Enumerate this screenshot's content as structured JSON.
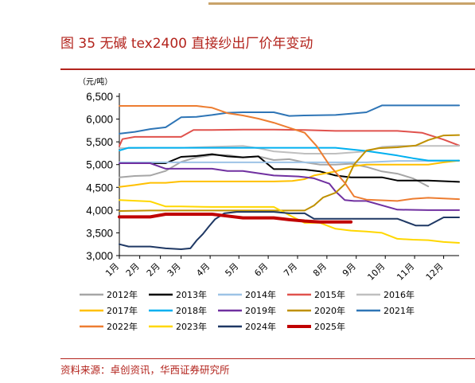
{
  "figure": {
    "title": "图 35 无碱 tex2400 直接纱出厂价年变动",
    "source": "资料来源：卓创资讯，华西证券研究所"
  },
  "chart_data": {
    "type": "line",
    "title": "图 35 无碱 tex2400 直接纱出厂价年变动",
    "unit_label": "（元/吨）",
    "ylim": [
      3000,
      6500
    ],
    "yticks": [
      "3,000",
      "3,500",
      "4,000",
      "4,500",
      "5,000",
      "5,500",
      "6,000",
      "6,500"
    ],
    "ytick_values": [
      3000,
      3500,
      4000,
      4500,
      5000,
      5500,
      6000,
      6500
    ],
    "xlim": [
      1,
      12
    ],
    "xticks": [
      "1月",
      "2月",
      "2月",
      "3月",
      "4月",
      "5月",
      "6月",
      "7月",
      "8月",
      "9月",
      "10月",
      "11月",
      "12月"
    ],
    "xtick_values": [
      1,
      1.66,
      2.33,
      3,
      3.94,
      4.87,
      5.82,
      6.77,
      7.72,
      8.67,
      9.61,
      10.56,
      11.5
    ],
    "grid": false,
    "legend_position": "bottom",
    "series": [
      {
        "name": "2012年",
        "color": "#a6a6a6",
        "width": 2,
        "points": [
          [
            1,
            4720
          ],
          [
            1.5,
            4750
          ],
          [
            2,
            4760
          ],
          [
            2.5,
            4860
          ],
          [
            3,
            5060
          ],
          [
            3.5,
            5160
          ],
          [
            4,
            5210
          ],
          [
            4.5,
            5210
          ],
          [
            5,
            5160
          ],
          [
            5.5,
            5180
          ],
          [
            6,
            5100
          ],
          [
            6.5,
            5120
          ],
          [
            7,
            5050
          ],
          [
            7.5,
            5000
          ],
          [
            8,
            5000
          ],
          [
            8.5,
            5020
          ],
          [
            9,
            4950
          ],
          [
            9.5,
            4850
          ],
          [
            10,
            4800
          ],
          [
            10.5,
            4700
          ],
          [
            11,
            4520
          ]
        ]
      },
      {
        "name": "2013年",
        "color": "#000000",
        "width": 2,
        "points": [
          [
            1,
            5030
          ],
          [
            1.5,
            5030
          ],
          [
            2,
            5030
          ],
          [
            2.5,
            5030
          ],
          [
            3,
            5170
          ],
          [
            3.5,
            5190
          ],
          [
            4,
            5230
          ],
          [
            4.5,
            5180
          ],
          [
            5,
            5160
          ],
          [
            5.5,
            5180
          ],
          [
            6,
            4900
          ],
          [
            6.5,
            4900
          ],
          [
            7,
            4890
          ],
          [
            7.5,
            4850
          ],
          [
            8,
            4760
          ],
          [
            8.5,
            4720
          ],
          [
            9,
            4720
          ],
          [
            9.5,
            4720
          ],
          [
            10,
            4650
          ],
          [
            11,
            4650
          ],
          [
            12,
            4620
          ]
        ]
      },
      {
        "name": "2014年",
        "color": "#9dc3e6",
        "width": 2,
        "points": [
          [
            1,
            5050
          ],
          [
            2,
            5050
          ],
          [
            3,
            5050
          ],
          [
            4,
            5050
          ],
          [
            5,
            5050
          ],
          [
            6,
            5050
          ],
          [
            7,
            5050
          ],
          [
            8,
            5050
          ],
          [
            9,
            5050
          ],
          [
            10,
            5080
          ],
          [
            11,
            5080
          ],
          [
            12,
            5080
          ]
        ]
      },
      {
        "name": "2015年",
        "color": "#e0524d",
        "width": 2,
        "points": [
          [
            1,
            5410
          ],
          [
            1.1,
            5560
          ],
          [
            1.5,
            5610
          ],
          [
            2,
            5610
          ],
          [
            3,
            5610
          ],
          [
            3.4,
            5760
          ],
          [
            4,
            5760
          ],
          [
            5,
            5770
          ],
          [
            6,
            5770
          ],
          [
            7,
            5760
          ],
          [
            8,
            5740
          ],
          [
            9,
            5740
          ],
          [
            10,
            5740
          ],
          [
            10.8,
            5700
          ],
          [
            11.5,
            5550
          ],
          [
            12,
            5420
          ]
        ]
      },
      {
        "name": "2016年",
        "color": "#bfbfbf",
        "width": 2,
        "points": [
          [
            1,
            5360
          ],
          [
            2,
            5370
          ],
          [
            3,
            5370
          ],
          [
            4,
            5390
          ],
          [
            5,
            5410
          ],
          [
            5.5,
            5360
          ],
          [
            6,
            5290
          ],
          [
            7,
            5240
          ],
          [
            8,
            5240
          ],
          [
            9,
            5290
          ],
          [
            9.5,
            5390
          ],
          [
            10,
            5410
          ],
          [
            11,
            5410
          ],
          [
            12,
            5410
          ]
        ]
      },
      {
        "name": "2017年",
        "color": "#ffc000",
        "width": 2,
        "points": [
          [
            1,
            4510
          ],
          [
            1.5,
            4550
          ],
          [
            2,
            4600
          ],
          [
            2.5,
            4600
          ],
          [
            3,
            4630
          ],
          [
            4,
            4630
          ],
          [
            5,
            4630
          ],
          [
            6,
            4630
          ],
          [
            6.6,
            4640
          ],
          [
            7,
            4680
          ],
          [
            7.3,
            4760
          ],
          [
            8,
            4850
          ],
          [
            8.5,
            4960
          ],
          [
            9,
            5000
          ],
          [
            10,
            5000
          ],
          [
            11,
            5000
          ],
          [
            11.5,
            5050
          ],
          [
            12,
            5090
          ]
        ]
      },
      {
        "name": "2018年",
        "color": "#00b0f0",
        "width": 2,
        "points": [
          [
            1,
            5310
          ],
          [
            1.3,
            5370
          ],
          [
            2,
            5370
          ],
          [
            3,
            5370
          ],
          [
            4,
            5370
          ],
          [
            5,
            5370
          ],
          [
            6,
            5370
          ],
          [
            7,
            5370
          ],
          [
            8,
            5370
          ],
          [
            9,
            5300
          ],
          [
            9.5,
            5250
          ],
          [
            10,
            5200
          ],
          [
            10.5,
            5140
          ],
          [
            11,
            5090
          ],
          [
            12,
            5090
          ]
        ]
      },
      {
        "name": "2019年",
        "color": "#7030a0",
        "width": 2,
        "points": [
          [
            1,
            5030
          ],
          [
            2,
            5030
          ],
          [
            2.5,
            4910
          ],
          [
            3,
            4910
          ],
          [
            4,
            4910
          ],
          [
            4.5,
            4860
          ],
          [
            5,
            4860
          ],
          [
            6,
            4760
          ],
          [
            6.8,
            4740
          ],
          [
            7.3,
            4700
          ],
          [
            7.8,
            4580
          ],
          [
            8,
            4410
          ],
          [
            8.3,
            4220
          ],
          [
            8.6,
            4200
          ],
          [
            9,
            4200
          ],
          [
            10,
            4010
          ],
          [
            11,
            4000
          ],
          [
            12,
            4000
          ]
        ]
      },
      {
        "name": "2020年",
        "color": "#bf9000",
        "width": 2,
        "points": [
          [
            1,
            3980
          ],
          [
            2,
            3990
          ],
          [
            3,
            3990
          ],
          [
            4,
            3990
          ],
          [
            5,
            3990
          ],
          [
            6,
            3990
          ],
          [
            7,
            3990
          ],
          [
            7.3,
            4100
          ],
          [
            7.6,
            4280
          ],
          [
            8,
            4380
          ],
          [
            8.3,
            4570
          ],
          [
            8.6,
            5000
          ],
          [
            9,
            5310
          ],
          [
            9.4,
            5360
          ],
          [
            10,
            5380
          ],
          [
            10.6,
            5420
          ],
          [
            11,
            5540
          ],
          [
            11.5,
            5640
          ],
          [
            12,
            5650
          ]
        ]
      },
      {
        "name": "2021年",
        "color": "#2e75b6",
        "width": 2,
        "points": [
          [
            1,
            5680
          ],
          [
            1.5,
            5720
          ],
          [
            2,
            5780
          ],
          [
            2.5,
            5820
          ],
          [
            3,
            6040
          ],
          [
            3.5,
            6050
          ],
          [
            4,
            6090
          ],
          [
            4.5,
            6140
          ],
          [
            5,
            6150
          ],
          [
            6,
            6150
          ],
          [
            6.5,
            6070
          ],
          [
            7,
            6080
          ],
          [
            8,
            6090
          ],
          [
            8.5,
            6120
          ],
          [
            9,
            6150
          ],
          [
            9.5,
            6300
          ],
          [
            10,
            6300
          ],
          [
            11,
            6300
          ],
          [
            12,
            6300
          ]
        ]
      },
      {
        "name": "2022年",
        "color": "#ed7d31",
        "width": 2,
        "points": [
          [
            1,
            6290
          ],
          [
            2,
            6290
          ],
          [
            3,
            6290
          ],
          [
            3.5,
            6290
          ],
          [
            4,
            6250
          ],
          [
            4.5,
            6130
          ],
          [
            5,
            6080
          ],
          [
            5.5,
            6010
          ],
          [
            6,
            5920
          ],
          [
            6.5,
            5810
          ],
          [
            7,
            5700
          ],
          [
            7.4,
            5400
          ],
          [
            7.8,
            4990
          ],
          [
            8.3,
            4600
          ],
          [
            8.6,
            4300
          ],
          [
            9,
            4230
          ],
          [
            10,
            4200
          ],
          [
            10.5,
            4250
          ],
          [
            11,
            4270
          ],
          [
            12,
            4240
          ]
        ]
      },
      {
        "name": "2023年",
        "color": "#ffd700",
        "width": 2,
        "points": [
          [
            1,
            4220
          ],
          [
            2,
            4190
          ],
          [
            2.5,
            4080
          ],
          [
            3,
            4080
          ],
          [
            4,
            4070
          ],
          [
            5,
            4070
          ],
          [
            6,
            4070
          ],
          [
            6.5,
            3890
          ],
          [
            7,
            3720
          ],
          [
            7.5,
            3720
          ],
          [
            8,
            3590
          ],
          [
            8.5,
            3550
          ],
          [
            9,
            3530
          ],
          [
            9.5,
            3500
          ],
          [
            10,
            3370
          ],
          [
            10.5,
            3350
          ],
          [
            11,
            3340
          ],
          [
            11.5,
            3300
          ],
          [
            12,
            3280
          ]
        ]
      },
      {
        "name": "2024年",
        "color": "#1f3864",
        "width": 2,
        "points": [
          [
            1,
            3250
          ],
          [
            1.3,
            3200
          ],
          [
            2,
            3200
          ],
          [
            2.5,
            3160
          ],
          [
            3,
            3140
          ],
          [
            3.3,
            3160
          ],
          [
            3.5,
            3330
          ],
          [
            3.7,
            3470
          ],
          [
            3.9,
            3640
          ],
          [
            4.1,
            3800
          ],
          [
            4.4,
            3930
          ],
          [
            4.8,
            3960
          ],
          [
            5,
            3960
          ],
          [
            6,
            3960
          ],
          [
            6.5,
            3930
          ],
          [
            7,
            3930
          ],
          [
            7.3,
            3810
          ],
          [
            8,
            3810
          ],
          [
            9,
            3810
          ],
          [
            10,
            3810
          ],
          [
            10.6,
            3660
          ],
          [
            11,
            3660
          ],
          [
            11.5,
            3840
          ],
          [
            12,
            3840
          ]
        ]
      },
      {
        "name": "2025年",
        "color": "#c00000",
        "width": 4,
        "points": [
          [
            1,
            3850
          ],
          [
            2,
            3850
          ],
          [
            2.5,
            3910
          ],
          [
            3,
            3910
          ],
          [
            3.5,
            3910
          ],
          [
            4,
            3910
          ],
          [
            4.5,
            3870
          ],
          [
            5,
            3830
          ],
          [
            6,
            3830
          ],
          [
            6.5,
            3790
          ],
          [
            7,
            3760
          ],
          [
            7.5,
            3740
          ],
          [
            8,
            3740
          ],
          [
            8.5,
            3740
          ]
        ]
      }
    ]
  }
}
